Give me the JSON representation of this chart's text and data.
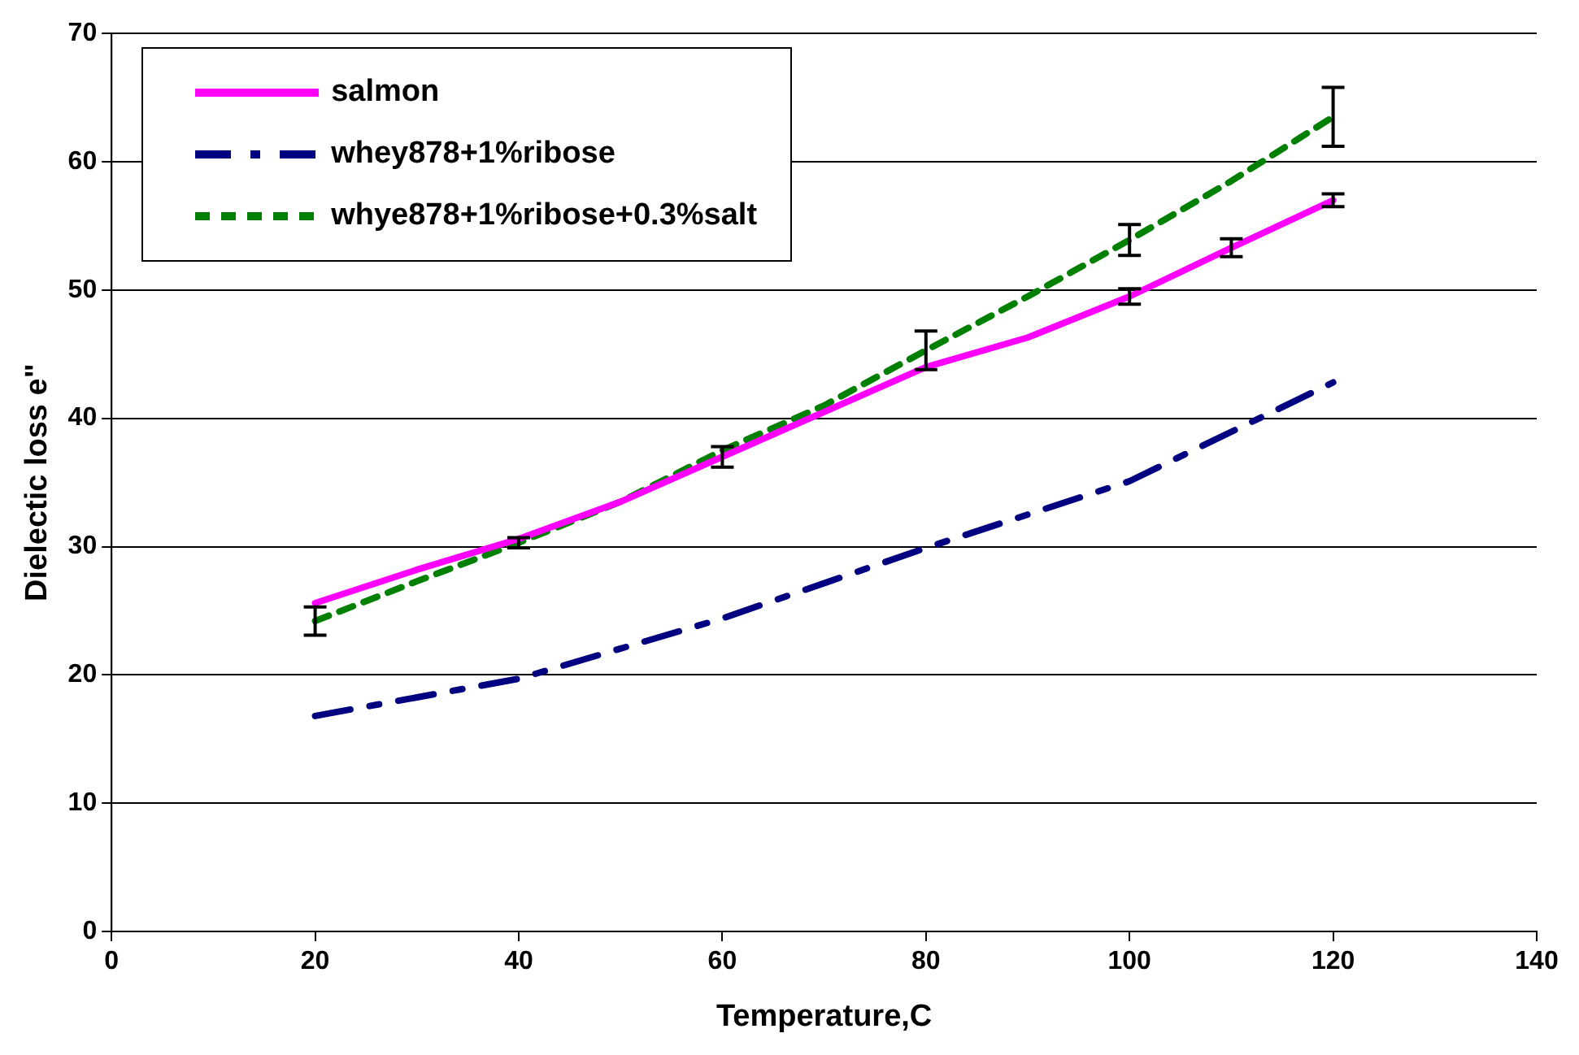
{
  "chart_data": {
    "type": "line",
    "xlabel": "Temperature,C",
    "ylabel": "Dielectic loss e\"",
    "xlim": [
      0,
      140
    ],
    "xticks": [
      0,
      20,
      40,
      60,
      80,
      100,
      120,
      140
    ],
    "ylim": [
      0,
      70
    ],
    "yticks": [
      0,
      10,
      20,
      30,
      40,
      50,
      60,
      70
    ],
    "grid": "y",
    "legend": "top left",
    "marker": "none",
    "series": [
      {
        "name": "salmon",
        "color": "#ff00ff",
        "line_style": "solid",
        "x": [
          20,
          30,
          40,
          50,
          60,
          70,
          80,
          90,
          100,
          110,
          120
        ],
        "values": [
          25.6,
          28.2,
          30.6,
          33.5,
          37.0,
          40.5,
          44.0,
          46.3,
          49.5,
          53.3,
          57.0
        ],
        "errors": [
          null,
          null,
          null,
          null,
          0.8,
          null,
          null,
          null,
          0.6,
          0.7,
          0.5
        ]
      },
      {
        "name": "whey878+1%ribose",
        "color": "#000080",
        "line_style": "dashed",
        "x": [
          20,
          40,
          60,
          80,
          100,
          120
        ],
        "values": [
          16.8,
          19.7,
          24.4,
          29.9,
          35.1,
          42.8
        ]
      },
      {
        "name": "whye878+1%ribose+0.3%salt",
        "color": "#008000",
        "line_style": "dotted",
        "x": [
          20,
          30,
          40,
          50,
          60,
          70,
          80,
          90,
          100,
          110,
          120
        ],
        "values": [
          24.2,
          27.3,
          30.3,
          33.5,
          37.5,
          41.0,
          45.3,
          49.5,
          53.9,
          58.5,
          63.5
        ],
        "errors": [
          1.1,
          null,
          0.4,
          null,
          null,
          null,
          1.5,
          null,
          1.2,
          null,
          2.3
        ]
      }
    ]
  }
}
